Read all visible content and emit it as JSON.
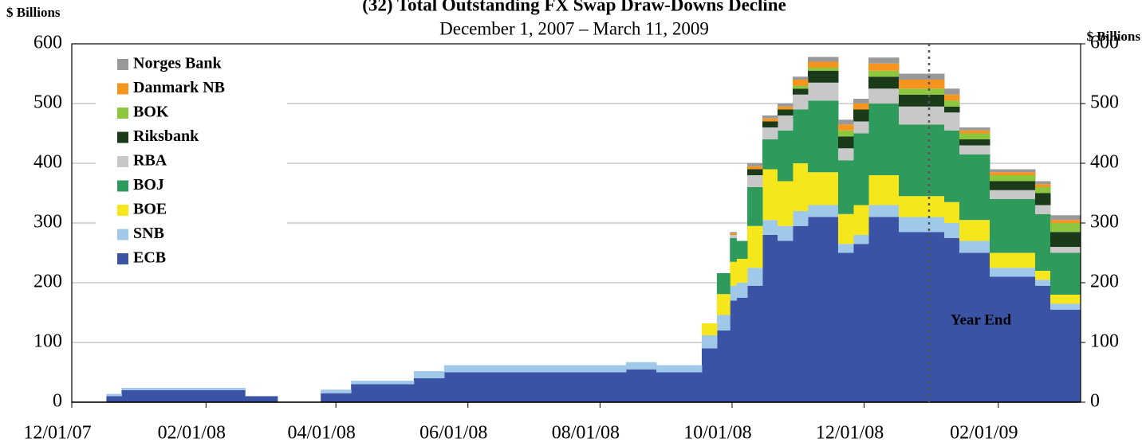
{
  "chart_data": {
    "type": "stacked_area",
    "title": "(32) Total Outstanding FX Swap Draw-Downs Decline",
    "subtitle": "December 1, 2007 – March 11, 2009",
    "y_label": "$ Billions",
    "y2_label": "$ Billions",
    "x": [
      "2007-12-01",
      "2007-12-17",
      "2007-12-24",
      "2008-02-19",
      "2008-03-05",
      "2008-03-25",
      "2008-04-08",
      "2008-05-07",
      "2008-05-21",
      "2008-08-13",
      "2008-08-27",
      "2008-09-17",
      "2008-09-24",
      "2008-09-30",
      "2008-10-03",
      "2008-10-08",
      "2008-10-15",
      "2008-10-22",
      "2008-10-29",
      "2008-11-05",
      "2008-11-19",
      "2008-11-26",
      "2008-12-03",
      "2008-12-17",
      "2009-01-07",
      "2009-01-14",
      "2009-01-28",
      "2009-02-18",
      "2009-02-25"
    ],
    "xlim": [
      "2007-12-01",
      "2009-03-11"
    ],
    "xticks": [
      {
        "value": "2007-12-01",
        "label": "12/01/07"
      },
      {
        "value": "2008-02-01",
        "label": "02/01/08"
      },
      {
        "value": "2008-04-01",
        "label": "04/01/08"
      },
      {
        "value": "2008-06-01",
        "label": "06/01/08"
      },
      {
        "value": "2008-08-01",
        "label": "08/01/08"
      },
      {
        "value": "2008-10-01",
        "label": "10/01/08"
      },
      {
        "value": "2008-12-01",
        "label": "12/01/08"
      },
      {
        "value": "2009-02-01",
        "label": "02/01/09"
      }
    ],
    "ylim": [
      0,
      600
    ],
    "yticks": [
      0,
      100,
      200,
      300,
      400,
      500,
      600
    ],
    "y2lim": [
      0,
      600
    ],
    "y2ticks": [
      0,
      100,
      200,
      300,
      400,
      500,
      600
    ],
    "grid": true,
    "legend": "upper-left",
    "series": [
      {
        "name": "ECB",
        "color": "#3a53a4",
        "values": [
          0,
          10,
          20,
          10,
          0,
          15,
          30,
          40,
          50,
          55,
          50,
          90,
          120,
          170,
          175,
          195,
          280,
          270,
          295,
          310,
          250,
          265,
          310,
          285,
          275,
          250,
          210,
          195,
          155
        ]
      },
      {
        "name": "SNB",
        "color": "#a0c8e8",
        "values": [
          0,
          4,
          4,
          0,
          0,
          6,
          6,
          12,
          12,
          12,
          12,
          22,
          26,
          25,
          25,
          30,
          25,
          25,
          25,
          20,
          15,
          15,
          20,
          25,
          25,
          20,
          15,
          10,
          10
        ]
      },
      {
        "name": "BOE",
        "color": "#f5e71c",
        "values": [
          0,
          0,
          0,
          0,
          0,
          0,
          0,
          0,
          0,
          0,
          0,
          20,
          35,
          40,
          40,
          70,
          85,
          75,
          80,
          55,
          50,
          50,
          50,
          35,
          35,
          35,
          25,
          15,
          15
        ]
      },
      {
        "name": "BOJ",
        "color": "#2e9a5c",
        "values": [
          0,
          0,
          0,
          0,
          0,
          0,
          0,
          0,
          0,
          0,
          0,
          0,
          35,
          40,
          30,
          65,
          50,
          85,
          90,
          120,
          90,
          120,
          120,
          120,
          120,
          110,
          90,
          95,
          70
        ]
      },
      {
        "name": "RBA",
        "color": "#c8c8c8",
        "values": [
          0,
          0,
          0,
          0,
          0,
          0,
          0,
          0,
          0,
          0,
          0,
          0,
          0,
          5,
          0,
          20,
          20,
          25,
          25,
          30,
          20,
          20,
          25,
          30,
          30,
          15,
          15,
          15,
          10
        ]
      },
      {
        "name": "Riksbank",
        "color": "#1a3a1a",
        "values": [
          0,
          0,
          0,
          0,
          0,
          0,
          0,
          0,
          0,
          0,
          0,
          0,
          0,
          0,
          0,
          10,
          10,
          10,
          10,
          20,
          20,
          20,
          20,
          20,
          10,
          10,
          15,
          20,
          25
        ]
      },
      {
        "name": "BOK",
        "color": "#8dc63f",
        "values": [
          0,
          0,
          0,
          0,
          0,
          0,
          0,
          0,
          0,
          0,
          0,
          0,
          0,
          0,
          0,
          0,
          0,
          0,
          5,
          5,
          10,
          0,
          10,
          10,
          10,
          10,
          10,
          10,
          15
        ]
      },
      {
        "name": "Danmark NB",
        "color": "#f7941d",
        "values": [
          0,
          0,
          0,
          0,
          0,
          0,
          0,
          0,
          0,
          0,
          0,
          0,
          0,
          3,
          0,
          5,
          5,
          5,
          10,
          10,
          10,
          10,
          12,
          15,
          10,
          5,
          5,
          5,
          5
        ]
      },
      {
        "name": "Norges Bank",
        "color": "#999999",
        "values": [
          0,
          0,
          0,
          0,
          0,
          0,
          0,
          0,
          0,
          0,
          0,
          0,
          0,
          2,
          0,
          5,
          5,
          5,
          5,
          8,
          8,
          8,
          10,
          10,
          10,
          5,
          5,
          5,
          8
        ]
      }
    ],
    "annotations": [
      {
        "text": "Year End",
        "x": "2008-12-31"
      }
    ]
  }
}
